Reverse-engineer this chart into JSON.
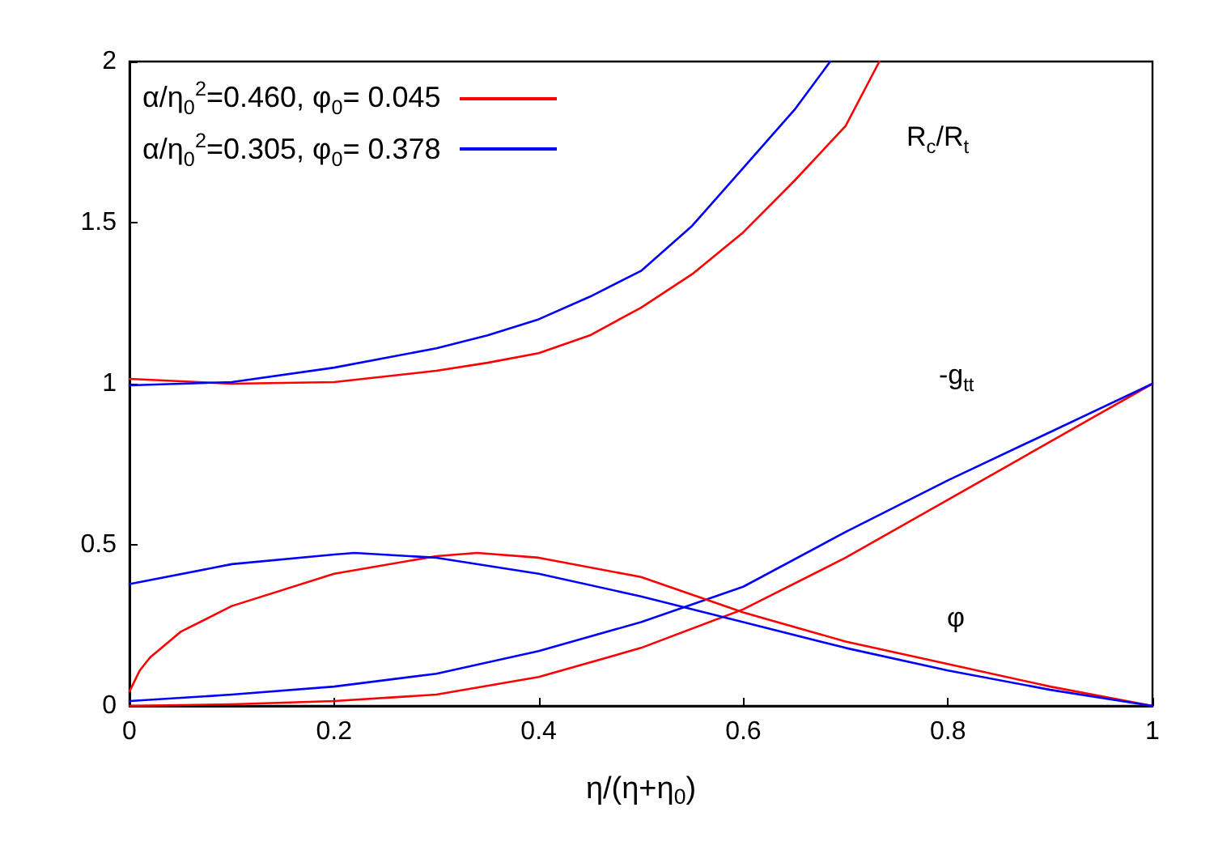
{
  "chart_data": {
    "type": "line",
    "xlabel": "η/(η+η$_{0}$)",
    "xlim": [
      0,
      1
    ],
    "xticks": [
      0,
      0.2,
      0.4,
      0.6,
      0.8,
      1
    ],
    "ylim": [
      0,
      2
    ],
    "yticks": [
      0,
      0.5,
      1,
      1.5,
      2
    ],
    "grid": false,
    "legend": "top left",
    "marker": "none",
    "line_style": "solid",
    "series": [
      {
        "name": "α/η$_{0}$$^{2}$=0.460, φ$_{0}$= 0.045",
        "color": "#ff0000",
        "x": [
          0,
          0.1,
          0.2,
          0.3,
          0.35,
          0.4,
          0.45,
          0.5,
          0.55,
          0.6,
          0.65,
          0.7,
          0.733
        ],
        "values": [
          1.015,
          1.0,
          1.005,
          1.04,
          1.065,
          1.095,
          1.15,
          1.236,
          1.34,
          1.47,
          1.63,
          1.8,
          2.0
        ]
      },
      {
        "name": "α/η$_{0}$$^{2}$=0.305, φ$_{0}$= 0.378",
        "color": "#0000ff",
        "x": [
          0,
          0.1,
          0.2,
          0.3,
          0.35,
          0.4,
          0.45,
          0.5,
          0.55,
          0.6,
          0.65,
          0.685
        ],
        "values": [
          0.995,
          1.005,
          1.05,
          1.11,
          1.15,
          1.2,
          1.27,
          1.35,
          1.49,
          1.67,
          1.85,
          2.0
        ]
      },
      {
        "color": "#ff0000",
        "x": [
          0,
          0.1,
          0.2,
          0.3,
          0.4,
          0.5,
          0.6,
          0.7,
          0.8,
          0.9,
          1
        ],
        "values": [
          0.0,
          0.005,
          0.015,
          0.035,
          0.09,
          0.18,
          0.3,
          0.46,
          0.64,
          0.82,
          1.0
        ]
      },
      {
        "color": "#0000ff",
        "x": [
          0,
          0.1,
          0.2,
          0.3,
          0.4,
          0.5,
          0.6,
          0.7,
          0.8,
          0.9,
          1
        ],
        "values": [
          0.015,
          0.035,
          0.06,
          0.1,
          0.17,
          0.26,
          0.37,
          0.54,
          0.7,
          0.85,
          1.0
        ]
      },
      {
        "color": "#ff0000",
        "x": [
          0,
          0.01,
          0.02,
          0.05,
          0.1,
          0.2,
          0.3,
          0.34,
          0.4,
          0.5,
          0.6,
          0.7,
          0.8,
          0.9,
          1
        ],
        "values": [
          0.045,
          0.11,
          0.15,
          0.23,
          0.31,
          0.41,
          0.465,
          0.475,
          0.46,
          0.4,
          0.29,
          0.2,
          0.13,
          0.06,
          0.0
        ]
      },
      {
        "color": "#0000ff",
        "x": [
          0,
          0.1,
          0.2,
          0.22,
          0.3,
          0.4,
          0.5,
          0.6,
          0.7,
          0.8,
          0.9,
          1
        ],
        "values": [
          0.378,
          0.44,
          0.47,
          0.475,
          0.46,
          0.41,
          0.34,
          0.26,
          0.18,
          0.11,
          0.05,
          0.0
        ]
      }
    ],
    "annotations": [
      "R$_{c}$/R$_{t}$",
      "-g$_{tt}$",
      "φ"
    ]
  }
}
